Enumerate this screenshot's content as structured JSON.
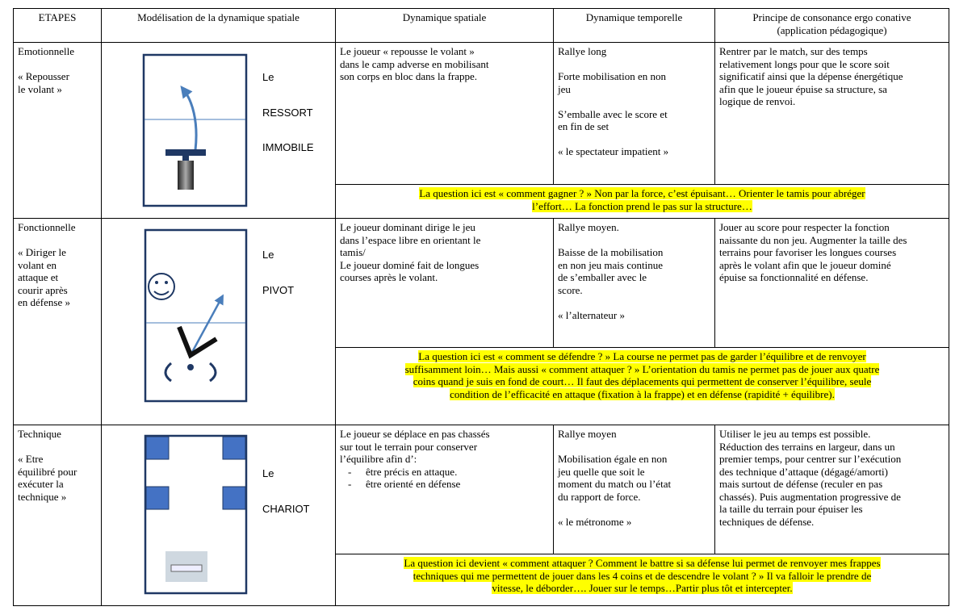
{
  "table": {
    "header": [
      [
        "ETAPES"
      ],
      [
        "Modélisation de la dynamique spatiale"
      ],
      [
        "Dynamique spatiale"
      ],
      [
        "Dynamique temporelle"
      ],
      [
        "Principe de consonance ergo conative",
        "(application pédagogique)"
      ]
    ],
    "rows": [
      {
        "etape": "Emotionnelle",
        "quote": [
          "« Repousser",
          "le volant »"
        ],
        "model": [
          "Le",
          "RESSORT",
          "IMMOBILE"
        ],
        "spatial": {
          "lines": [
            "Le joueur « repousse le volant »",
            "dans le camp adverse en mobilisant",
            "son corps en bloc dans la frappe."
          ]
        },
        "temporal": [
          [
            "Rallye long"
          ],
          [
            "Forte mobilisation en non",
            "jeu"
          ],
          [
            "S’emballe avec le score et",
            "en fin de set"
          ],
          [
            "« le spectateur impatient »"
          ]
        ],
        "principle": [
          "Rentrer par le match, sur des temps",
          "relativement longs pour que le score soit",
          "significatif ainsi que la dépense énergétique",
          "afin que le joueur épuise sa structure, sa",
          "logique de renvoi."
        ],
        "question": [
          "La question ici est « comment gagner ? » Non par la force, c’est épuisant… Orienter le tamis pour abréger",
          "l’effort… La fonction prend le pas sur la structure…"
        ]
      },
      {
        "etape": "Fonctionnelle",
        "quote": [
          "« Diriger le",
          "volant en",
          "attaque et",
          "courir après",
          "en défense »"
        ],
        "model": [
          "Le",
          "PIVOT"
        ],
        "spatial": {
          "lines": [
            "Le joueur dominant dirige le jeu",
            "dans l’espace libre en orientant le",
            "tamis/",
            "Le joueur dominé fait de longues",
            "courses après le volant."
          ]
        },
        "temporal": [
          [
            "Rallye moyen."
          ],
          [
            "Baisse de la mobilisation",
            "en non jeu mais continue",
            "de s’emballer avec le",
            "score."
          ],
          [
            "« l’alternateur »"
          ]
        ],
        "principle": [
          "Jouer au score pour respecter la fonction",
          "naissante du non jeu. Augmenter la taille des",
          "terrains pour favoriser les longues courses",
          "après le volant afin que le joueur dominé",
          "épuise sa fonctionnalité en défense."
        ],
        "question": [
          "La question ici est « comment se défendre ? » La course ne permet pas de garder l’équilibre et de renvoyer",
          "suffisamment loin… Mais aussi « comment attaquer ? » L’orientation du tamis ne permet pas de jouer aux quatre",
          "coins quand je suis en fond de court… Il faut des déplacements qui permettent de conserver l’équilibre, seule",
          "condition de l’efficacité en attaque (fixation à la frappe) et en défense (rapidité + équilibre)."
        ]
      },
      {
        "etape": "Technique",
        "quote": [
          "« Etre",
          "équilibré pour",
          "exécuter la",
          "technique »"
        ],
        "model": [
          "Le",
          "CHARIOT"
        ],
        "spatial": {
          "lines": [
            "Le joueur se déplace en pas chassés",
            "sur tout le terrain pour conserver",
            "l’équilibre afin d’:"
          ],
          "bullets": [
            "être précis en attaque.",
            "être orienté en défense"
          ]
        },
        "temporal": [
          [
            "Rallye moyen"
          ],
          [
            "Mobilisation égale en non",
            "jeu quelle que soit le",
            "moment du match ou l’état",
            "du rapport de force."
          ],
          [
            "« le métronome »"
          ]
        ],
        "principle": [
          "Utiliser le jeu au temps est possible.",
          "Réduction des terrains en largeur, dans un",
          "premier temps, pour centrer sur l’exécution",
          "des technique d’attaque (dégagé/amorti)",
          "mais surtout de défense (reculer en pas",
          "chassés). Puis augmentation progressive de",
          "la taille du terrain pour épuiser les",
          "techniques de défense."
        ],
        "question": [
          "La question ici devient  « comment attaquer ? Comment le battre si sa défense lui permet de renvoyer mes frappes",
          "techniques qui me permettent de jouer dans les 4 coins et de descendre le volant ? » Il va falloir le prendre de",
          "vitesse, le déborder…. Jouer sur le temps…Partir plus tôt et intercepter."
        ]
      }
    ]
  }
}
